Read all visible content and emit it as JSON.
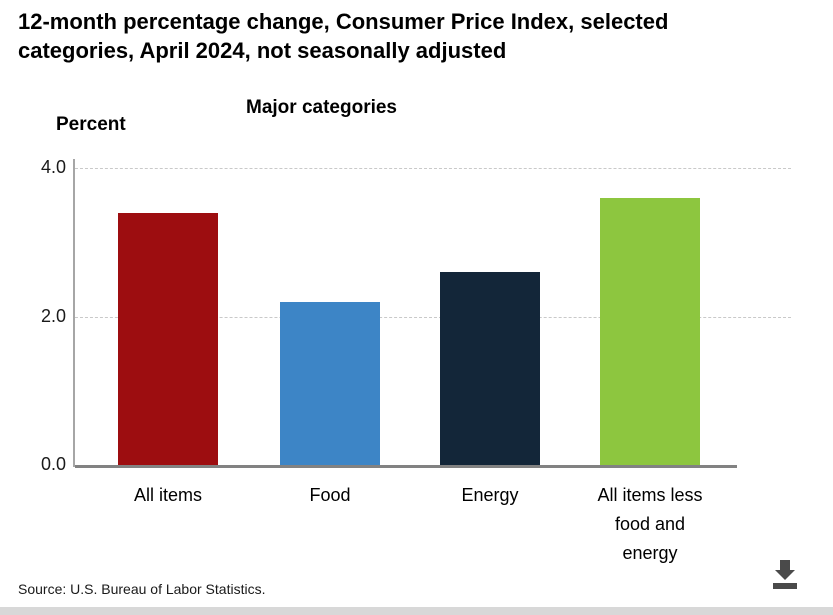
{
  "header": {
    "title": "12-month percentage change, Consumer Price Index, selected categories, April 2024, not seasonally adjusted"
  },
  "chart_data": {
    "type": "bar",
    "title": "Major categories",
    "ylabel": "Percent",
    "categories": [
      "All items",
      "Food",
      "Energy",
      "All items less food and energy"
    ],
    "values": [
      3.4,
      2.2,
      2.6,
      3.6
    ],
    "colors": [
      "#9d0d10",
      "#3d85c6",
      "#132639",
      "#8dc63f"
    ],
    "ylim": [
      0,
      4
    ],
    "yticks": [
      {
        "value": 4,
        "label": "4.0"
      },
      {
        "value": 2,
        "label": "2.0"
      },
      {
        "value": 0,
        "label": "0.0"
      }
    ],
    "grid": "horizontal-dashed",
    "legend": "none"
  },
  "footer": {
    "source": "Source: U.S. Bureau of Labor Statistics."
  },
  "icons": {
    "download": "download-icon"
  }
}
